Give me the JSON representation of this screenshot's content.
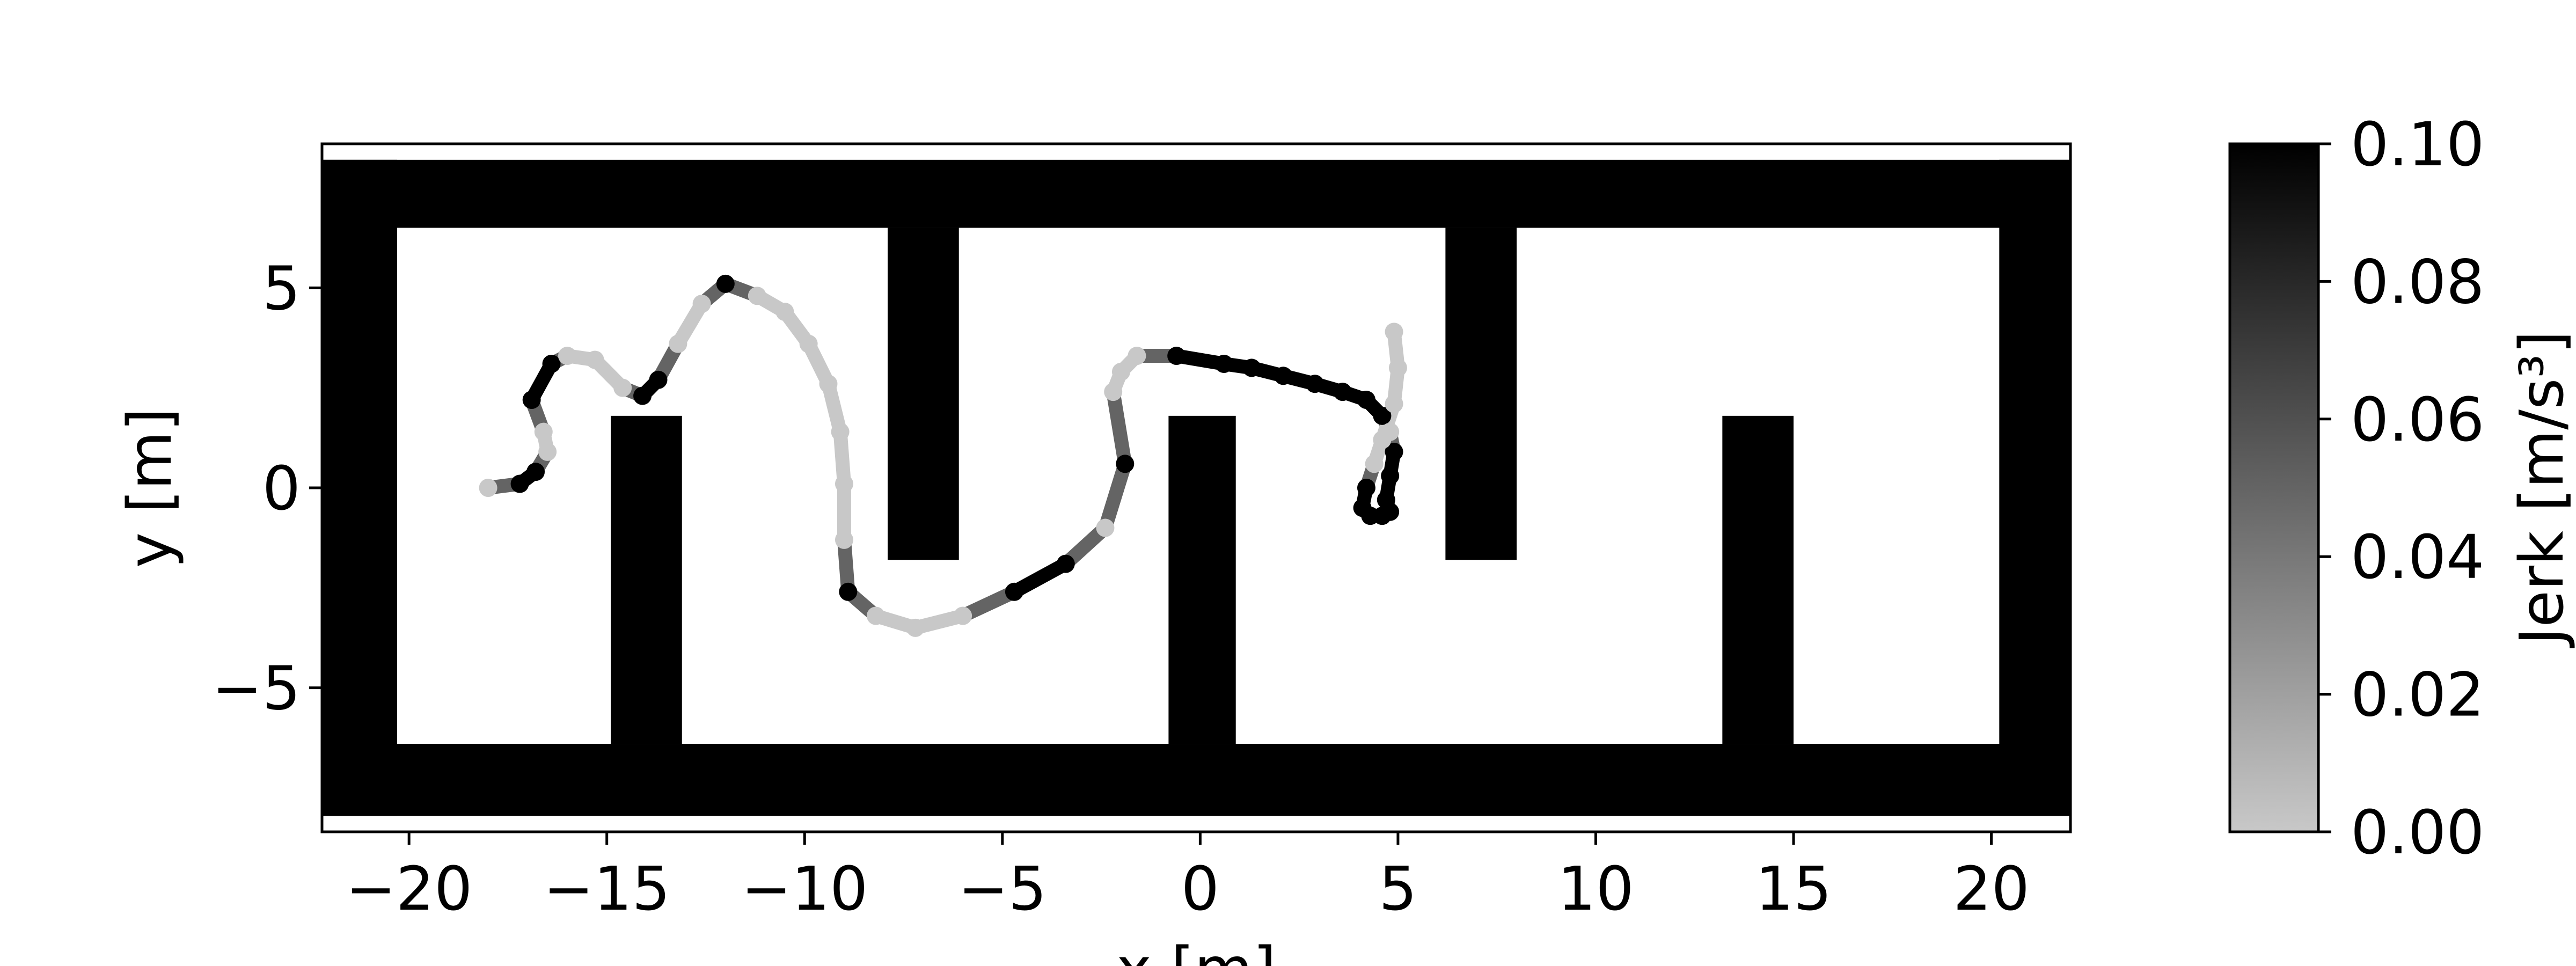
{
  "chart_data": {
    "type": "scatter",
    "title": "",
    "xlabel": "x [m]",
    "ylabel": "y [m]",
    "xlim": [
      -22.2,
      22.0
    ],
    "ylim": [
      -8.6,
      8.6
    ],
    "x_ticks": [
      -20,
      -15,
      -10,
      -5,
      0,
      5,
      10,
      15,
      20
    ],
    "y_ticks": [
      -5,
      0,
      5
    ],
    "x_tick_labels": [
      "−20",
      "−15",
      "−10",
      "−5",
      "0",
      "5",
      "10",
      "15",
      "20"
    ],
    "y_tick_labels": [
      "−5",
      "0",
      "5"
    ],
    "grid": false,
    "walls": [
      {
        "x0": -22.2,
        "x1": 22.0,
        "y0": 6.5,
        "y1": 8.2
      },
      {
        "x0": -22.2,
        "x1": 22.0,
        "y0": -8.2,
        "y1": -6.4
      },
      {
        "x0": -22.2,
        "x1": -20.3,
        "y0": -8.2,
        "y1": 8.2
      },
      {
        "x0": 20.2,
        "x1": 22.0,
        "y0": -8.2,
        "y1": 8.2
      },
      {
        "x0": -14.9,
        "x1": -13.1,
        "y0": -6.4,
        "y1": 1.8
      },
      {
        "x0": -0.8,
        "x1": 0.9,
        "y0": -6.4,
        "y1": 1.8
      },
      {
        "x0": 13.2,
        "x1": 15.0,
        "y0": -6.4,
        "y1": 1.8
      },
      {
        "x0": -7.9,
        "x1": -6.1,
        "y0": -1.8,
        "y1": 6.5
      },
      {
        "x0": 6.2,
        "x1": 8.0,
        "y0": -1.8,
        "y1": 6.5
      }
    ],
    "trajectory": {
      "x": [
        -18.0,
        -17.2,
        -16.8,
        -16.5,
        -16.6,
        -16.9,
        -16.4,
        -16.0,
        -15.3,
        -14.6,
        -14.1,
        -13.7,
        -13.2,
        -12.6,
        -12.0,
        -11.2,
        -10.5,
        -9.9,
        -9.4,
        -9.1,
        -9.0,
        -9.0,
        -8.9,
        -8.2,
        -7.2,
        -6.0,
        -4.7,
        -3.4,
        -2.4,
        -1.9,
        -2.2,
        -2.0,
        -1.6,
        -0.6,
        0.6,
        1.3,
        2.1,
        2.9,
        3.6,
        4.2,
        4.6,
        4.8,
        4.9,
        4.8,
        4.7,
        4.8,
        4.6,
        4.3,
        4.1,
        4.2,
        4.4,
        4.6,
        4.9,
        5.0,
        4.9
      ],
      "y": [
        0.0,
        0.1,
        0.4,
        0.9,
        1.4,
        2.2,
        3.1,
        3.3,
        3.2,
        2.5,
        2.3,
        2.7,
        3.6,
        4.6,
        5.1,
        4.8,
        4.4,
        3.6,
        2.6,
        1.4,
        0.1,
        -1.3,
        -2.6,
        -3.2,
        -3.5,
        -3.2,
        -2.6,
        -1.9,
        -1.0,
        0.6,
        2.4,
        2.9,
        3.3,
        3.3,
        3.1,
        3.0,
        2.8,
        2.6,
        2.4,
        2.2,
        1.8,
        1.4,
        0.9,
        0.3,
        -0.3,
        -0.6,
        -0.7,
        -0.7,
        -0.5,
        0.0,
        0.6,
        1.2,
        2.1,
        3.0,
        3.9
      ],
      "jerk": [
        0.0,
        0.1,
        0.1,
        0.0,
        0.0,
        0.1,
        0.1,
        0.0,
        0.0,
        0.0,
        0.1,
        0.1,
        0.0,
        0.0,
        0.1,
        0.0,
        0.0,
        0.0,
        0.0,
        0.0,
        0.0,
        0.0,
        0.1,
        0.0,
        0.0,
        0.0,
        0.1,
        0.1,
        0.0,
        0.1,
        0.0,
        0.0,
        0.0,
        0.1,
        0.1,
        0.1,
        0.1,
        0.1,
        0.1,
        0.1,
        0.1,
        0.0,
        0.1,
        0.1,
        0.1,
        0.1,
        0.1,
        0.1,
        0.1,
        0.1,
        0.0,
        0.0,
        0.0,
        0.0,
        0.0
      ]
    },
    "colorbar": {
      "label": "Jerk [m/s³]",
      "min": 0.0,
      "max": 0.1,
      "ticks": [
        0.0,
        0.02,
        0.04,
        0.06,
        0.08,
        0.1
      ],
      "tick_labels": [
        "0.00",
        "0.02",
        "0.04",
        "0.06",
        "0.08",
        "0.10"
      ],
      "cmap": "gray_r",
      "color_low": "#c8c8c8",
      "color_high": "#000000"
    }
  }
}
